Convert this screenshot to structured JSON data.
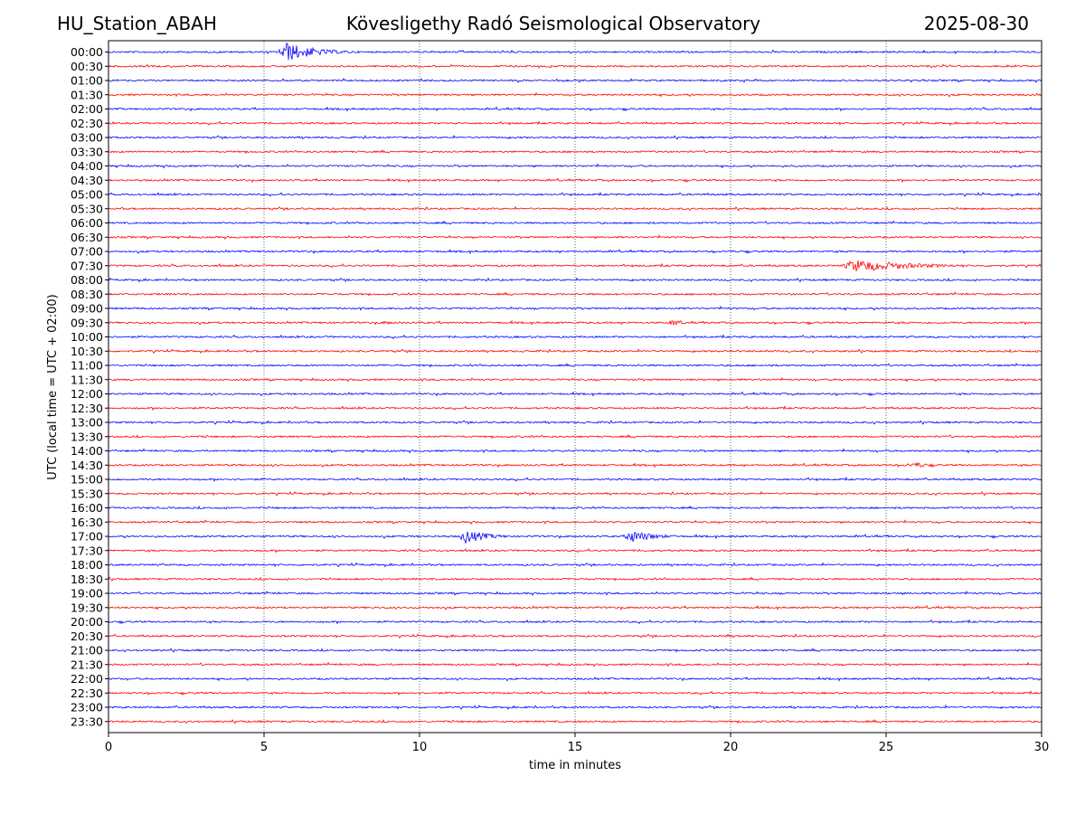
{
  "header": {
    "station": "HU_Station_ABAH",
    "observatory": "Kövesligethy Radó Seismological Observatory",
    "date": "2025-08-30"
  },
  "chart_data": {
    "type": "line",
    "title": "Kövesligethy Radó Seismological Observatory",
    "xlabel": "time in minutes",
    "ylabel": "UTC (local time = UTC + 02:00)",
    "xlim": [
      0,
      30
    ],
    "x_ticks": [
      0,
      5,
      10,
      15,
      20,
      25,
      30
    ],
    "x_tick_labels": [
      "0",
      "5",
      "10",
      "15",
      "20",
      "25",
      "30"
    ],
    "grid": "vertical dotted lines at x ticks",
    "row_labels": [
      "00:00",
      "00:30",
      "01:00",
      "01:30",
      "02:00",
      "02:30",
      "03:00",
      "03:30",
      "04:00",
      "04:30",
      "05:00",
      "05:30",
      "06:00",
      "06:30",
      "07:00",
      "07:30",
      "08:00",
      "08:30",
      "09:00",
      "09:30",
      "10:00",
      "10:30",
      "11:00",
      "11:30",
      "12:00",
      "12:30",
      "13:00",
      "13:30",
      "14:00",
      "14:30",
      "15:00",
      "15:30",
      "16:00",
      "16:30",
      "17:00",
      "17:30",
      "18:00",
      "18:30",
      "19:00",
      "19:30",
      "20:00",
      "20:30",
      "21:00",
      "21:30",
      "22:00",
      "22:30",
      "23:00",
      "23:30"
    ],
    "colors": [
      "#0000ff",
      "#ff0000"
    ],
    "events": [
      {
        "row": "00:00",
        "start_min": 5.4,
        "end_min": 8.5,
        "peak_min": 5.7,
        "amplitude": 11
      },
      {
        "row": "07:30",
        "start_min": 23.5,
        "end_min": 29.5,
        "peak_min": 24.0,
        "amplitude": 7
      },
      {
        "row": "09:30",
        "start_min": 8.5,
        "end_min": 9.8,
        "peak_min": 9.0,
        "amplitude": 2
      },
      {
        "row": "09:30",
        "start_min": 17.9,
        "end_min": 19.0,
        "peak_min": 18.2,
        "amplitude": 4
      },
      {
        "row": "14:30",
        "start_min": 25.3,
        "end_min": 27.5,
        "peak_min": 26.0,
        "amplitude": 3
      },
      {
        "row": "17:00",
        "start_min": 11.3,
        "end_min": 13.5,
        "peak_min": 11.4,
        "amplitude": 9
      },
      {
        "row": "17:00",
        "start_min": 16.6,
        "end_min": 19.0,
        "peak_min": 16.7,
        "amplitude": 8
      },
      {
        "row": "20:30",
        "start_min": 19.7,
        "end_min": 20.3,
        "peak_min": 19.9,
        "amplitude": 2
      }
    ]
  }
}
